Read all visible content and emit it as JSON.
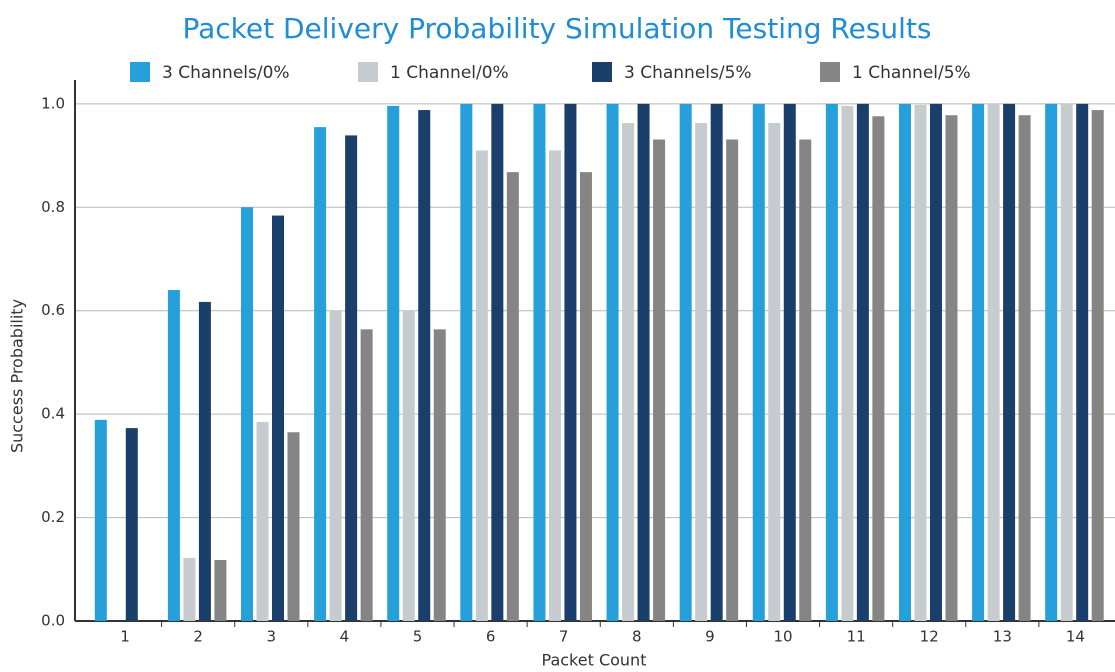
{
  "chart_data": {
    "type": "bar",
    "title": "Packet Delivery Probability Simulation Testing Results",
    "x_label": "Packet Count",
    "y_label": "Success Probability",
    "categories": [
      "1",
      "2",
      "3",
      "4",
      "5",
      "6",
      "7",
      "8",
      "9",
      "10",
      "11",
      "12",
      "13",
      "14"
    ],
    "series": [
      {
        "name": "3 Channels/0%",
        "color": "#26a0da",
        "values": [
          0.389,
          0.64,
          0.8,
          0.955,
          0.996,
          1.0,
          1.0,
          1.0,
          1.0,
          1.0,
          1.0,
          1.0,
          1.0,
          1.0
        ]
      },
      {
        "name": "1 Channel/0%",
        "color": "#c5cbcf",
        "values": [
          0,
          0.122,
          0.385,
          0.6,
          0.6,
          0.91,
          0.91,
          0.963,
          0.963,
          0.963,
          0.996,
          0.998,
          1.0,
          1.0
        ]
      },
      {
        "name": "3 Channels/5%",
        "color": "#1b3f6b",
        "values": [
          0.373,
          0.617,
          0.784,
          0.939,
          0.988,
          1.0,
          1.0,
          1.0,
          1.0,
          1.0,
          1.0,
          1.0,
          1.0,
          1.0
        ]
      },
      {
        "name": "1 Channel/5%",
        "color": "#858585",
        "values": [
          0,
          0.118,
          0.365,
          0.564,
          0.564,
          0.868,
          0.868,
          0.931,
          0.931,
          0.931,
          0.976,
          0.978,
          0.978,
          0.988
        ]
      }
    ],
    "ylim": [
      0,
      1.05
    ],
    "yticks": [
      {
        "value": 0,
        "label": "0.0"
      },
      0.2,
      0.4,
      0.6,
      0.8,
      {
        "value": 1,
        "label": "1.0"
      }
    ],
    "grid": true
  }
}
